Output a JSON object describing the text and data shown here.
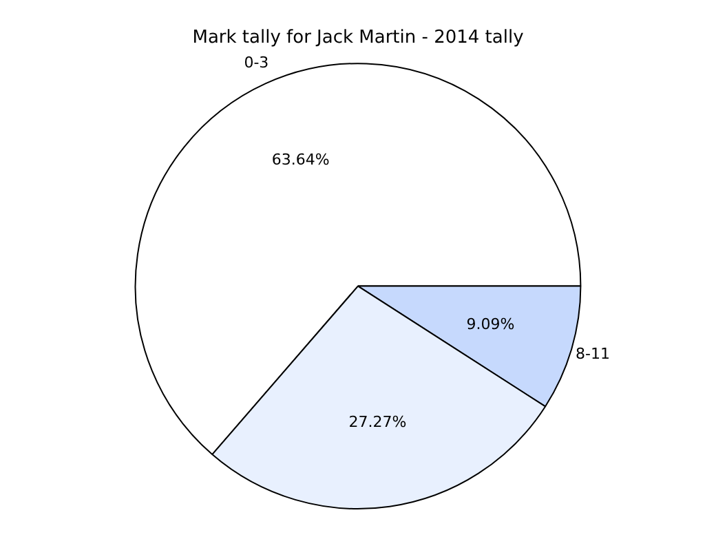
{
  "chart_data": {
    "type": "pie",
    "title": "Mark tally for Jack Martin - 2014 tally",
    "categories": [
      "0-3",
      "8-11",
      null
    ],
    "values": [
      63.64,
      9.09,
      27.27
    ],
    "value_labels": [
      "63.64%",
      "9.09%",
      "27.27%"
    ],
    "colors": [
      "#ffffff",
      "#c6d9fd",
      "#e8f0fe"
    ],
    "legend": false
  }
}
